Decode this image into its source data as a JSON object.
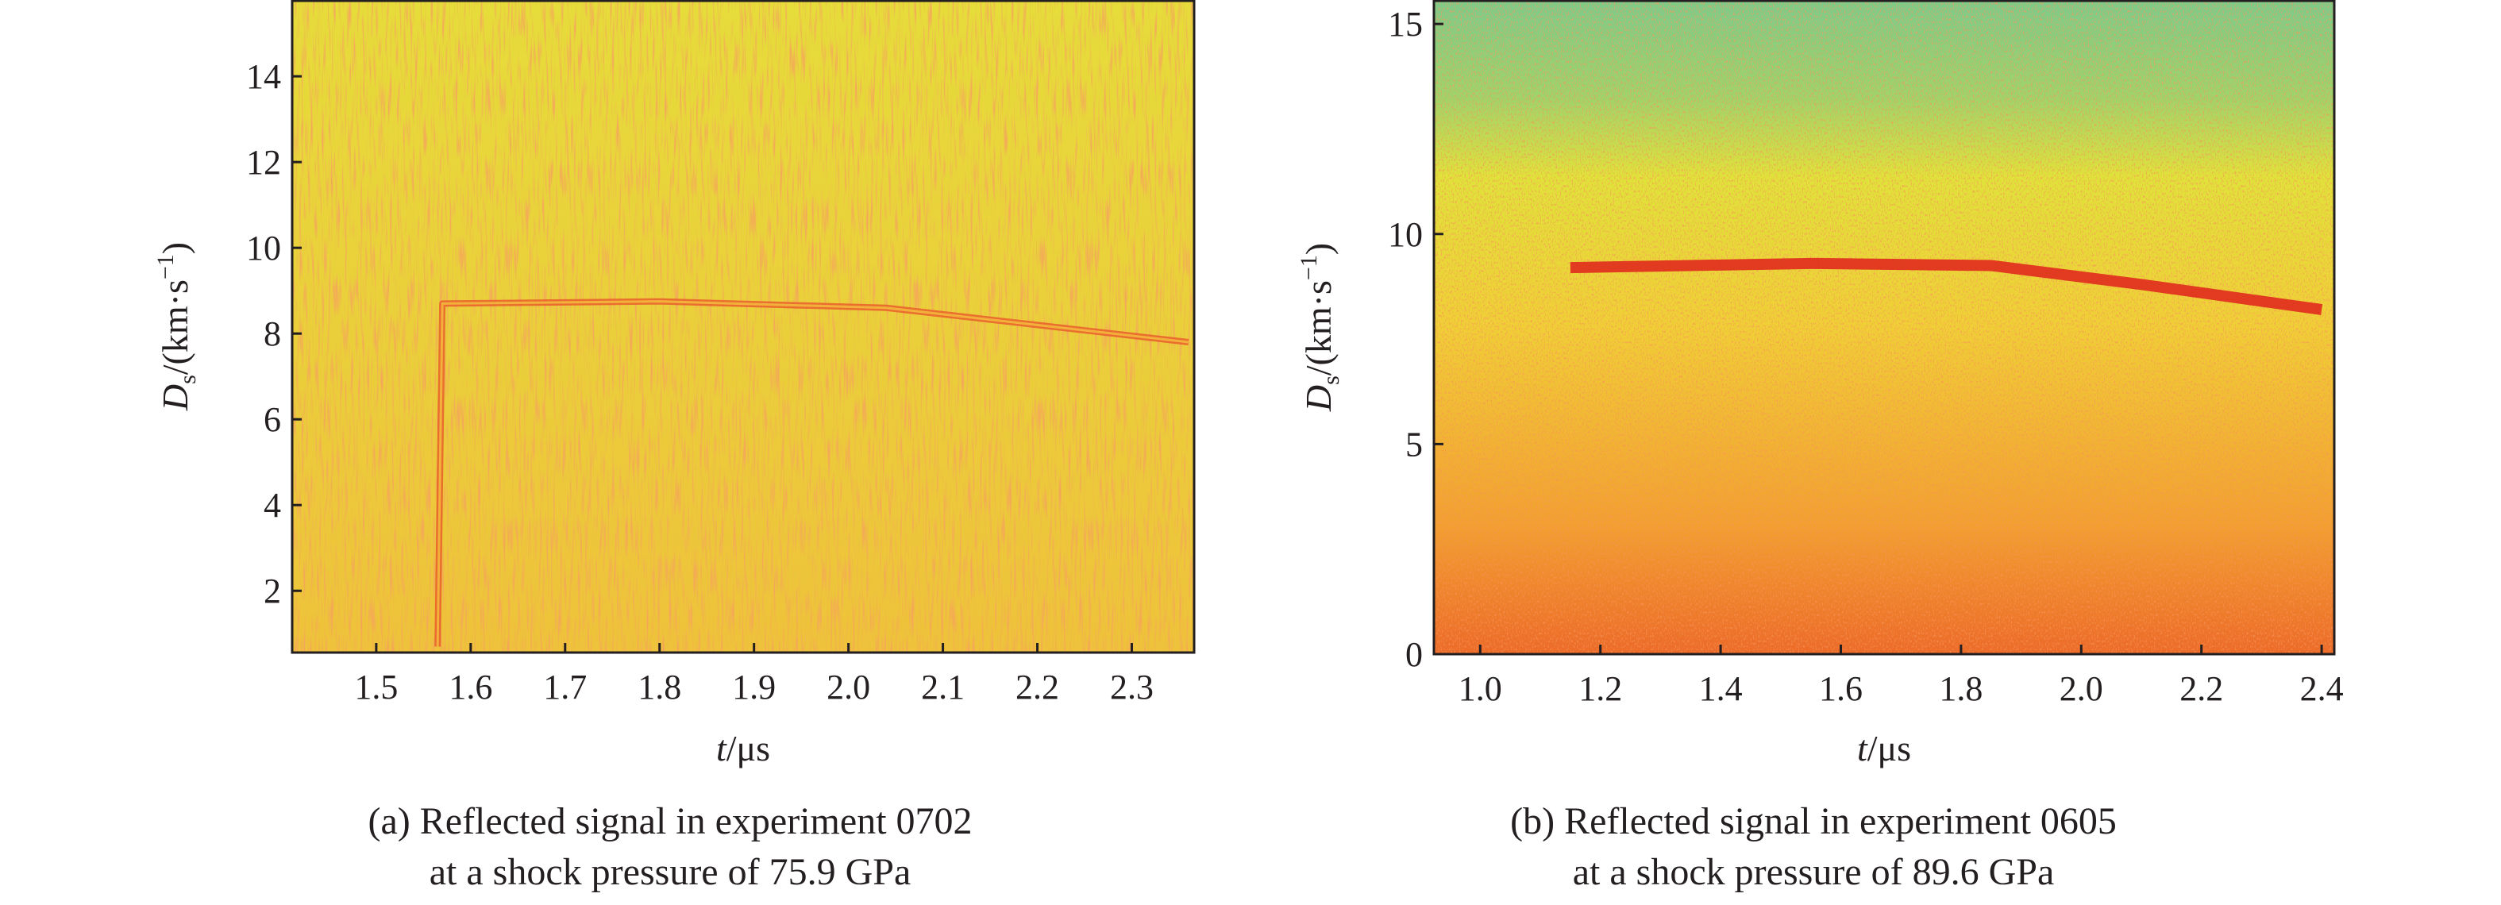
{
  "chart_data": [
    {
      "type": "line",
      "x": [
        1.565,
        1.57,
        1.8,
        2.04,
        2.2,
        2.36
      ],
      "series": [
        {
          "color": "#e8502a",
          "values": [
            0.7,
            8.7,
            8.75,
            8.6,
            8.2,
            7.8
          ]
        }
      ],
      "xlim": [
        1.411,
        2.366
      ],
      "xticks": [
        1.5,
        1.6,
        1.7,
        1.8,
        1.9,
        {
          "value": 2.0,
          "label": "2.0"
        },
        2.1,
        2.2,
        2.3
      ],
      "ylim": [
        0.56,
        15.78
      ],
      "yticks": [
        2,
        4,
        6,
        8,
        10,
        12,
        14
      ],
      "xlabel": [
        "t",
        "/μs"
      ],
      "ylabel": [
        "D",
        "s",
        "/(km·s",
        "−1",
        ")"
      ],
      "caption": [
        "(a) Reflected signal in experiment 0702",
        "at a shock pressure of 75.9 GPa"
      ]
    },
    {
      "type": "line",
      "x": [
        1.15,
        1.35,
        1.55,
        1.85,
        2.1,
        2.4
      ],
      "series": [
        {
          "color": "#e02a1e",
          "values": [
            9.2,
            9.25,
            9.3,
            9.25,
            8.8,
            8.2
          ]
        }
      ],
      "xlim": [
        0.923,
        2.421
      ],
      "xticks": [
        {
          "value": 1.0,
          "label": "1.0"
        },
        1.2,
        1.4,
        1.6,
        1.8,
        {
          "value": 2.0,
          "label": "2.0"
        },
        2.2,
        2.4
      ],
      "ylim": [
        0,
        15.57
      ],
      "yticks": [
        0,
        5,
        10,
        15
      ],
      "xlabel": [
        "t",
        "/μs"
      ],
      "ylabel": [
        "D",
        "s",
        "/(km·s",
        "−1",
        ")"
      ],
      "caption": [
        "(b) Reflected signal in experiment 0605",
        "at a shock pressure of 89.6 GPa"
      ]
    }
  ]
}
